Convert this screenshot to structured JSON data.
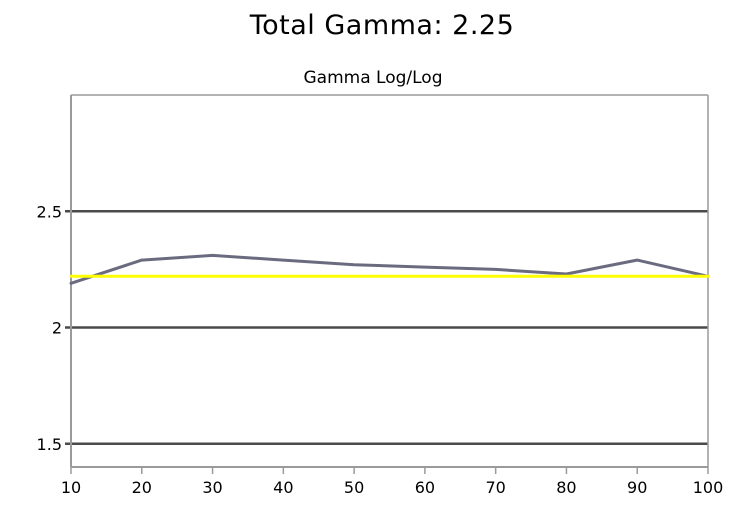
{
  "header": {
    "title": "Total Gamma: 2.25"
  },
  "chart_data": {
    "type": "line",
    "title": "Gamma Log/Log",
    "xlabel": "",
    "ylabel": "",
    "x": [
      10,
      20,
      30,
      40,
      50,
      60,
      70,
      80,
      90,
      100
    ],
    "xlim": [
      10,
      100
    ],
    "ylim": [
      1.4,
      3.0
    ],
    "x_ticks": [
      "10",
      "20",
      "30",
      "40",
      "50",
      "60",
      "70",
      "80",
      "90",
      "100"
    ],
    "y_ticks": [
      "1.5",
      "2",
      "2.5"
    ],
    "y_tick_values": [
      1.5,
      2.0,
      2.5
    ],
    "grid": "horizontal",
    "legend": "none",
    "series": [
      {
        "values": [
          2.19,
          2.29,
          2.31,
          2.29,
          2.27,
          2.26,
          2.25,
          2.23,
          2.29,
          2.22
        ],
        "color": "#6b6b80"
      },
      {
        "values": [
          2.22,
          2.22,
          2.22,
          2.22,
          2.22,
          2.22,
          2.22,
          2.22,
          2.22,
          2.22
        ],
        "color": "#ffff00"
      }
    ],
    "colors": {
      "gridline": "#4a4a4a",
      "axis": "#9a9a9a"
    }
  }
}
